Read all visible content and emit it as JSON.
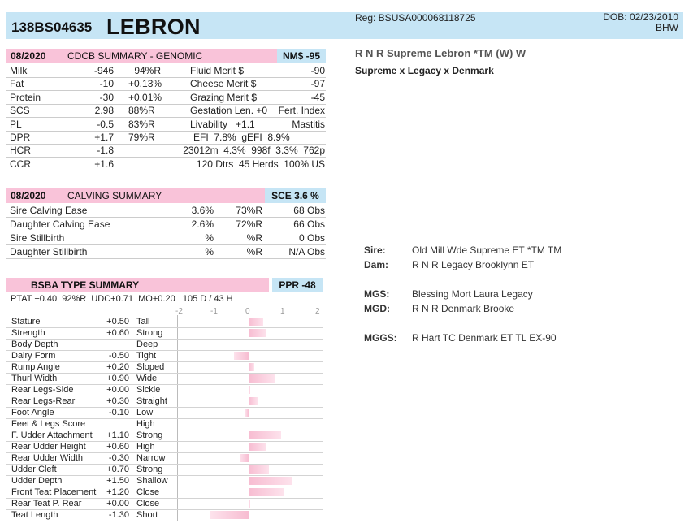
{
  "header": {
    "reg_number": "138BS04635",
    "name": "LEBRON",
    "reg": "Reg: BSUSA000068118725",
    "dob": "DOB: 02/23/2010",
    "code": "BHW"
  },
  "cdcb": {
    "date": "08/2020",
    "title": "CDCB SUMMARY - GENOMIC",
    "nm": "NM$ -95",
    "rows": [
      {
        "a": "Milk",
        "b": "-946",
        "c": "94%R",
        "d": "Fluid Merit $",
        "e": "-90"
      },
      {
        "a": "Fat",
        "b": "-10",
        "c": "+0.13%",
        "d": "Cheese Merit $",
        "e": "-97"
      },
      {
        "a": "Protein",
        "b": "-30",
        "c": "+0.01%",
        "d": "Grazing Merit $",
        "e": "-45"
      },
      {
        "a": "SCS",
        "b": "2.98",
        "c": "88%R",
        "d": "Gestation Len. +0",
        "e": "Fert. Index"
      },
      {
        "a": "PL",
        "b": "-0.5",
        "c": "83%R",
        "d": "Livability   +1.1",
        "e": "Mastitis"
      },
      {
        "a": "DPR",
        "b": "+1.7",
        "c": "79%R",
        "d": "EFI  7.8%  gEFI  8.9%",
        "e": ""
      },
      {
        "a": "HCR",
        "b": "-1.8",
        "c": "",
        "d": "23012m  4.3%  998f  3.3%  762p",
        "e": ""
      },
      {
        "a": "CCR",
        "b": "+1.6",
        "c": "",
        "d": "120 Dtrs  45 Herds  100% US",
        "e": ""
      }
    ]
  },
  "calving": {
    "date": "08/2020",
    "title": "CALVING SUMMARY",
    "sce": "SCE 3.6 %",
    "rows": [
      {
        "a": "Sire Calving Ease",
        "b": "3.6%",
        "c": "73%R",
        "d": "68 Obs"
      },
      {
        "a": "Daughter Calving Ease",
        "b": "2.6%",
        "c": "72%R",
        "d": "66 Obs"
      },
      {
        "a": "Sire Stillbirth",
        "b": "%",
        "c": "%R",
        "d": "0 Obs"
      },
      {
        "a": "Daughter Stillbirth",
        "b": "%",
        "c": "%R",
        "d": "N/A Obs"
      }
    ]
  },
  "type": {
    "title": "BSBA TYPE SUMMARY",
    "ppr": "PPR -48",
    "ptat_line": "PTAT +0.40  92%R  UDC+0.71  MO+0.20   105 D / 43 H",
    "axis": [
      "-2",
      "-1",
      "0",
      "1",
      "2"
    ],
    "traits": [
      {
        "name": "Stature",
        "value": "+0.50",
        "desc": "Tall",
        "v": 0.5
      },
      {
        "name": "Strength",
        "value": "+0.60",
        "desc": "Strong",
        "v": 0.6
      },
      {
        "name": "Body Depth",
        "value": "",
        "desc": "Deep",
        "v": null
      },
      {
        "name": "Dairy Form",
        "value": "-0.50",
        "desc": "Tight",
        "v": -0.5
      },
      {
        "name": "Rump Angle",
        "value": "+0.20",
        "desc": "Sloped",
        "v": 0.2
      },
      {
        "name": "Thurl Width",
        "value": "+0.90",
        "desc": "Wide",
        "v": 0.9
      },
      {
        "name": "Rear Legs-Side",
        "value": "+0.00",
        "desc": "Sickle",
        "v": 0.0
      },
      {
        "name": "Rear Legs-Rear",
        "value": "+0.30",
        "desc": "Straight",
        "v": 0.3
      },
      {
        "name": "Foot Angle",
        "value": "-0.10",
        "desc": "Low",
        "v": -0.1
      },
      {
        "name": "Feet & Legs Score",
        "value": "",
        "desc": "High",
        "v": null
      },
      {
        "name": "F. Udder Attachment",
        "value": "+1.10",
        "desc": "Strong",
        "v": 1.1
      },
      {
        "name": "Rear Udder Height",
        "value": "+0.60",
        "desc": "High",
        "v": 0.6
      },
      {
        "name": "Rear Udder Width",
        "value": "-0.30",
        "desc": "Narrow",
        "v": -0.3
      },
      {
        "name": "Udder Cleft",
        "value": "+0.70",
        "desc": "Strong",
        "v": 0.7
      },
      {
        "name": "Udder Depth",
        "value": "+1.50",
        "desc": "Shallow",
        "v": 1.5
      },
      {
        "name": "Front Teat Placement",
        "value": "+1.20",
        "desc": "Close",
        "v": 1.2
      },
      {
        "name": "Rear Teat P. Rear",
        "value": "+0.00",
        "desc": "Close",
        "v": 0.0
      },
      {
        "name": "Teat Length",
        "value": "-1.30",
        "desc": "Short",
        "v": -1.3
      }
    ]
  },
  "pedigree": {
    "full_name": "R N R Supreme Lebron *TM (W)  W",
    "line": "Supreme x Legacy x Denmark",
    "entries": [
      {
        "label": "Sire:",
        "value": "Old Mill Wde Supreme ET *TM TM"
      },
      {
        "label": "Dam:",
        "value": "R N R Legacy Brooklynn ET"
      },
      {
        "label": "MGS:",
        "value": "Blessing Mort Laura Legacy"
      },
      {
        "label": "MGD:",
        "value": "R N R Denmark Brooke"
      },
      {
        "label": "MGGS:",
        "value": "R Hart TC Denmark ET TL EX-90"
      }
    ]
  }
}
